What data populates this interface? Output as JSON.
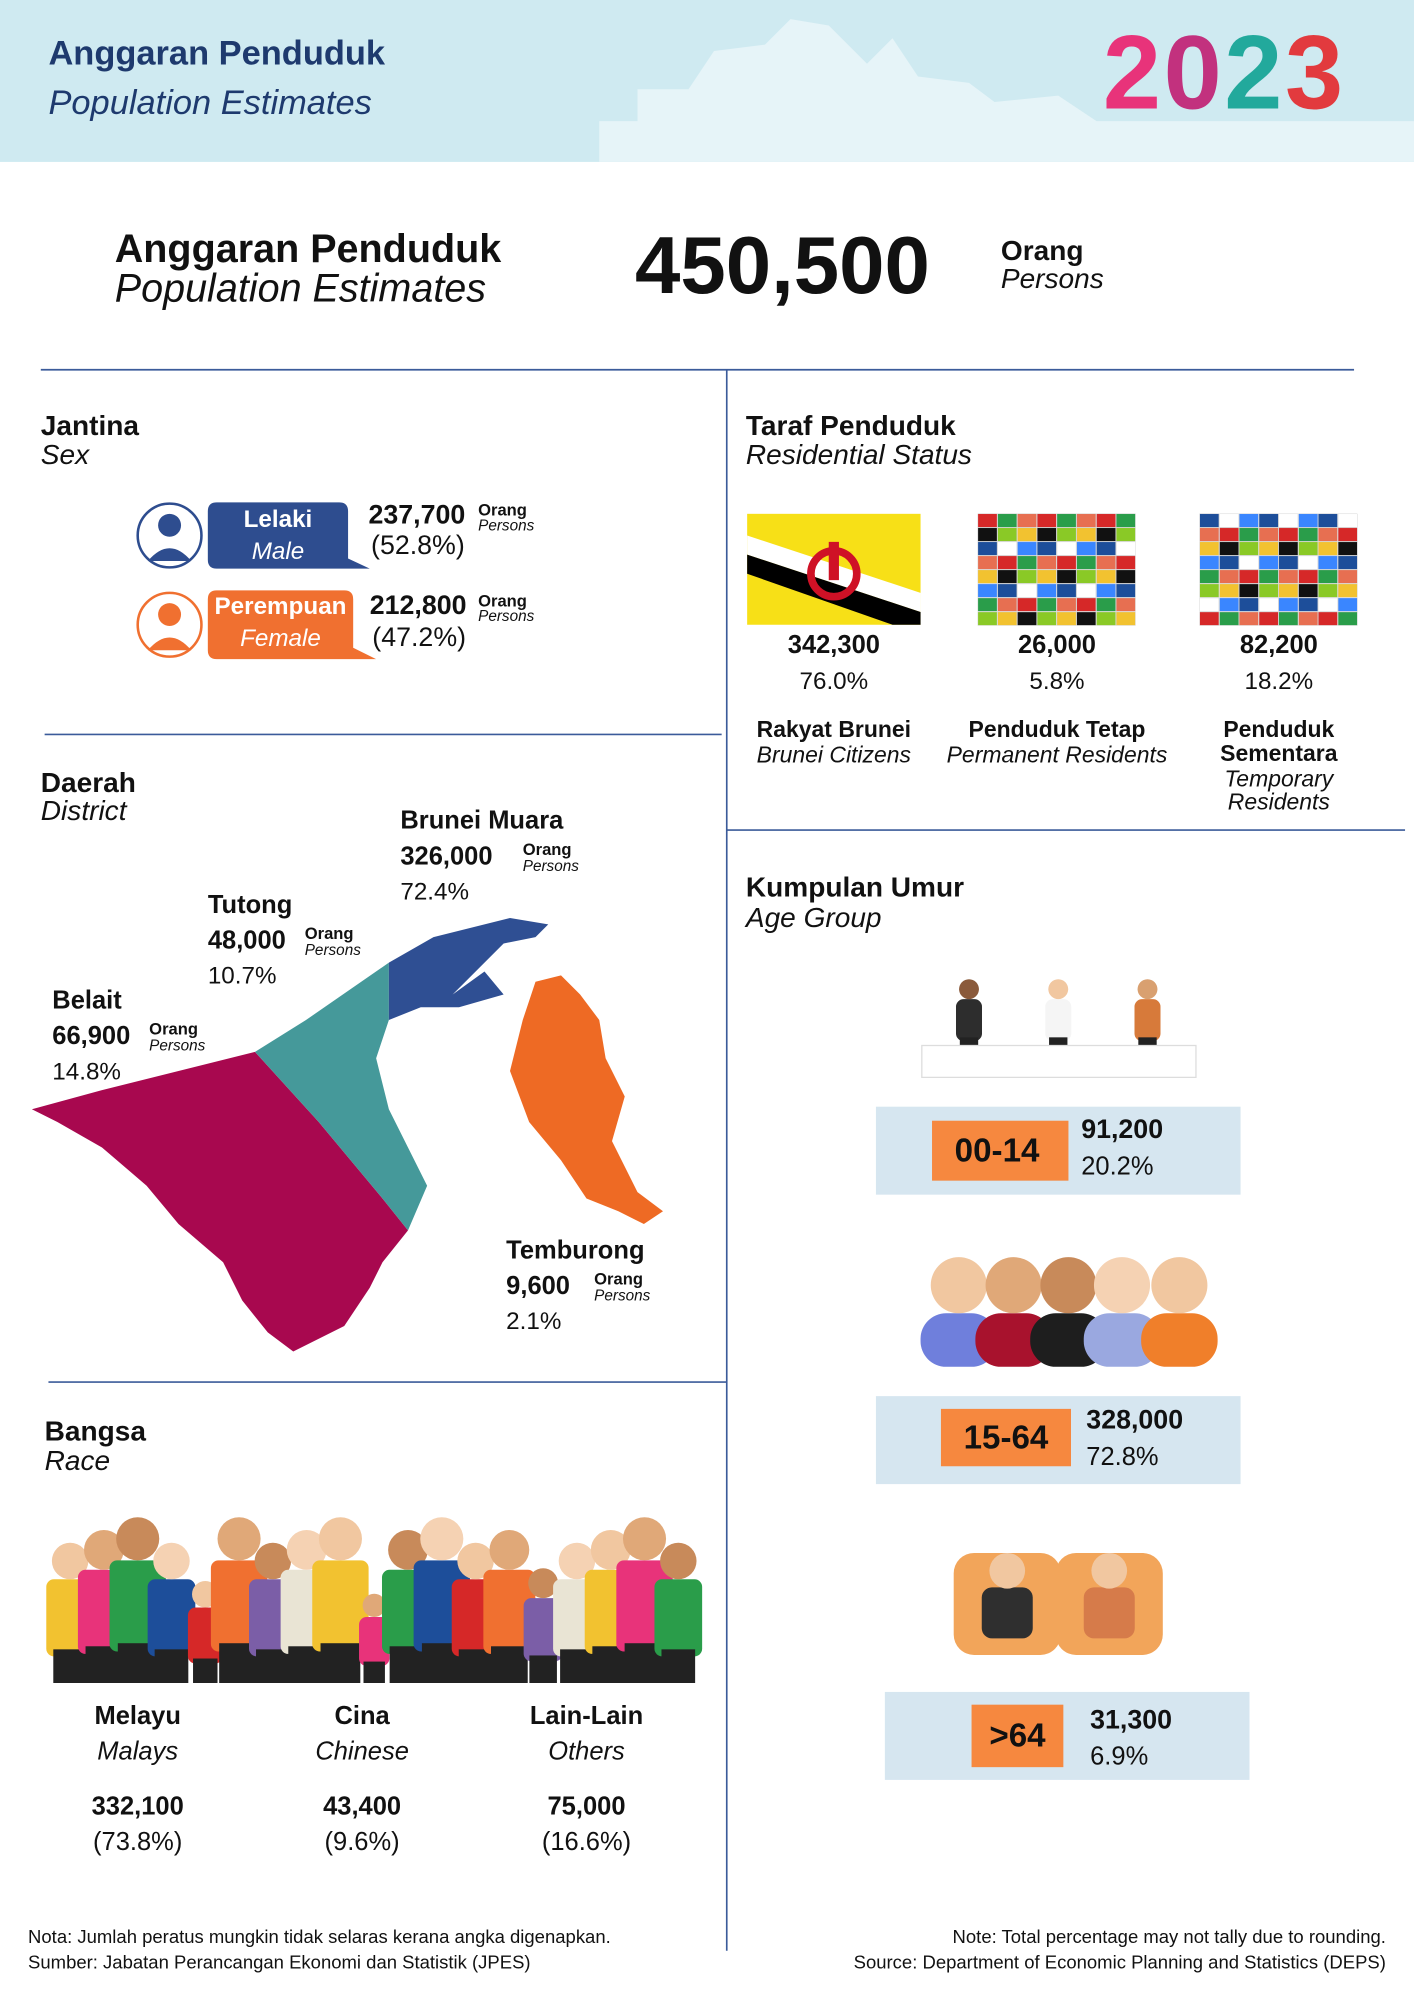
{
  "header": {
    "title_ms": "Anggaran Penduduk",
    "title_en": "Population Estimates",
    "year": "2023"
  },
  "total": {
    "label_ms": "Anggaran Penduduk",
    "label_en": "Population Estimates",
    "value": "450,500",
    "unit_ms": "Orang",
    "unit_en": "Persons"
  },
  "sex": {
    "title_ms": "Jantina",
    "title_en": "Sex",
    "items": [
      {
        "label_ms": "Lelaki",
        "label_en": "Male",
        "value": "237,700",
        "unit_ms": "Orang",
        "unit_en": "Persons",
        "percent": "(52.8%)"
      },
      {
        "label_ms": "Perempuan",
        "label_en": "Female",
        "value": "212,800",
        "unit_ms": "Orang",
        "unit_en": "Persons",
        "percent": "(47.2%)"
      }
    ]
  },
  "status": {
    "title_ms": "Taraf Penduduk",
    "title_en": "Residential Status",
    "items": [
      {
        "value": "342,300",
        "percent": "76.0%",
        "label_ms": "Rakyat Brunei",
        "label_en": "Brunei Citizens"
      },
      {
        "value": "26,000",
        "percent": "5.8%",
        "label_ms": "Penduduk Tetap",
        "label_en": "Permanent Residents"
      },
      {
        "value": "82,200",
        "percent": "18.2%",
        "label_ms": "Penduduk Sementara",
        "label_en": "Temporary Residents"
      }
    ]
  },
  "district": {
    "title_ms": "Daerah",
    "title_en": "District",
    "items": [
      {
        "name": "Brunei Muara",
        "value": "326,000",
        "unit_ms": "Orang",
        "unit_en": "Persons",
        "percent": "72.4%"
      },
      {
        "name": "Tutong",
        "value": "48,000",
        "unit_ms": "Orang",
        "unit_en": "Persons",
        "percent": "10.7%"
      },
      {
        "name": "Belait",
        "value": "66,900",
        "unit_ms": "Orang",
        "unit_en": "Persons",
        "percent": "14.8%"
      },
      {
        "name": "Temburong",
        "value": "9,600",
        "unit_ms": "Orang",
        "unit_en": "Persons",
        "percent": "2.1%"
      }
    ]
  },
  "age": {
    "title_ms": "Kumpulan Umur",
    "title_en": "Age Group",
    "items": [
      {
        "group": "00-14",
        "value": "91,200",
        "percent": "20.2%"
      },
      {
        "group": "15-64",
        "value": "328,000",
        "percent": "72.8%"
      },
      {
        "group": ">64",
        "value": "31,300",
        "percent": "6.9%"
      }
    ]
  },
  "race": {
    "title_ms": "Bangsa",
    "title_en": "Race",
    "items": [
      {
        "label_ms": "Melayu",
        "label_en": "Malays",
        "value": "332,100",
        "percent": "(73.8%)"
      },
      {
        "label_ms": "Cina",
        "label_en": "Chinese",
        "value": "43,400",
        "percent": "(9.6%)"
      },
      {
        "label_ms": "Lain-Lain",
        "label_en": "Others",
        "value": "75,000",
        "percent": "(16.6%)"
      }
    ]
  },
  "footer": {
    "note_ms": "Nota: Jumlah peratus mungkin tidak selaras kerana angka digenapkan.",
    "source_ms": "Sumber: Jabatan Perancangan Ekonomi dan Statistik (JPES)",
    "note_en": "Note: Total percentage may not tally due to rounding.",
    "source_en": "Source: Department of Economic Planning and Statistics (DEPS)"
  }
}
